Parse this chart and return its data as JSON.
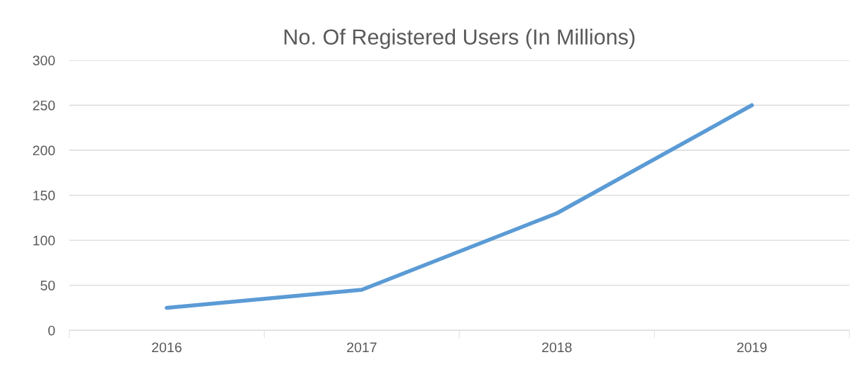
{
  "chart_data": {
    "type": "line",
    "title": "No. Of Registered Users (In Millions)",
    "categories": [
      "2016",
      "2017",
      "2018",
      "2019"
    ],
    "series": [
      {
        "color": "#5b9bd5",
        "values": [
          25,
          45,
          130,
          250
        ]
      }
    ],
    "ylim": [
      0,
      300
    ],
    "yticks": [
      0,
      50,
      100,
      150,
      200,
      250,
      300
    ],
    "grid": "y",
    "marker": "none",
    "line_style": "solid"
  }
}
